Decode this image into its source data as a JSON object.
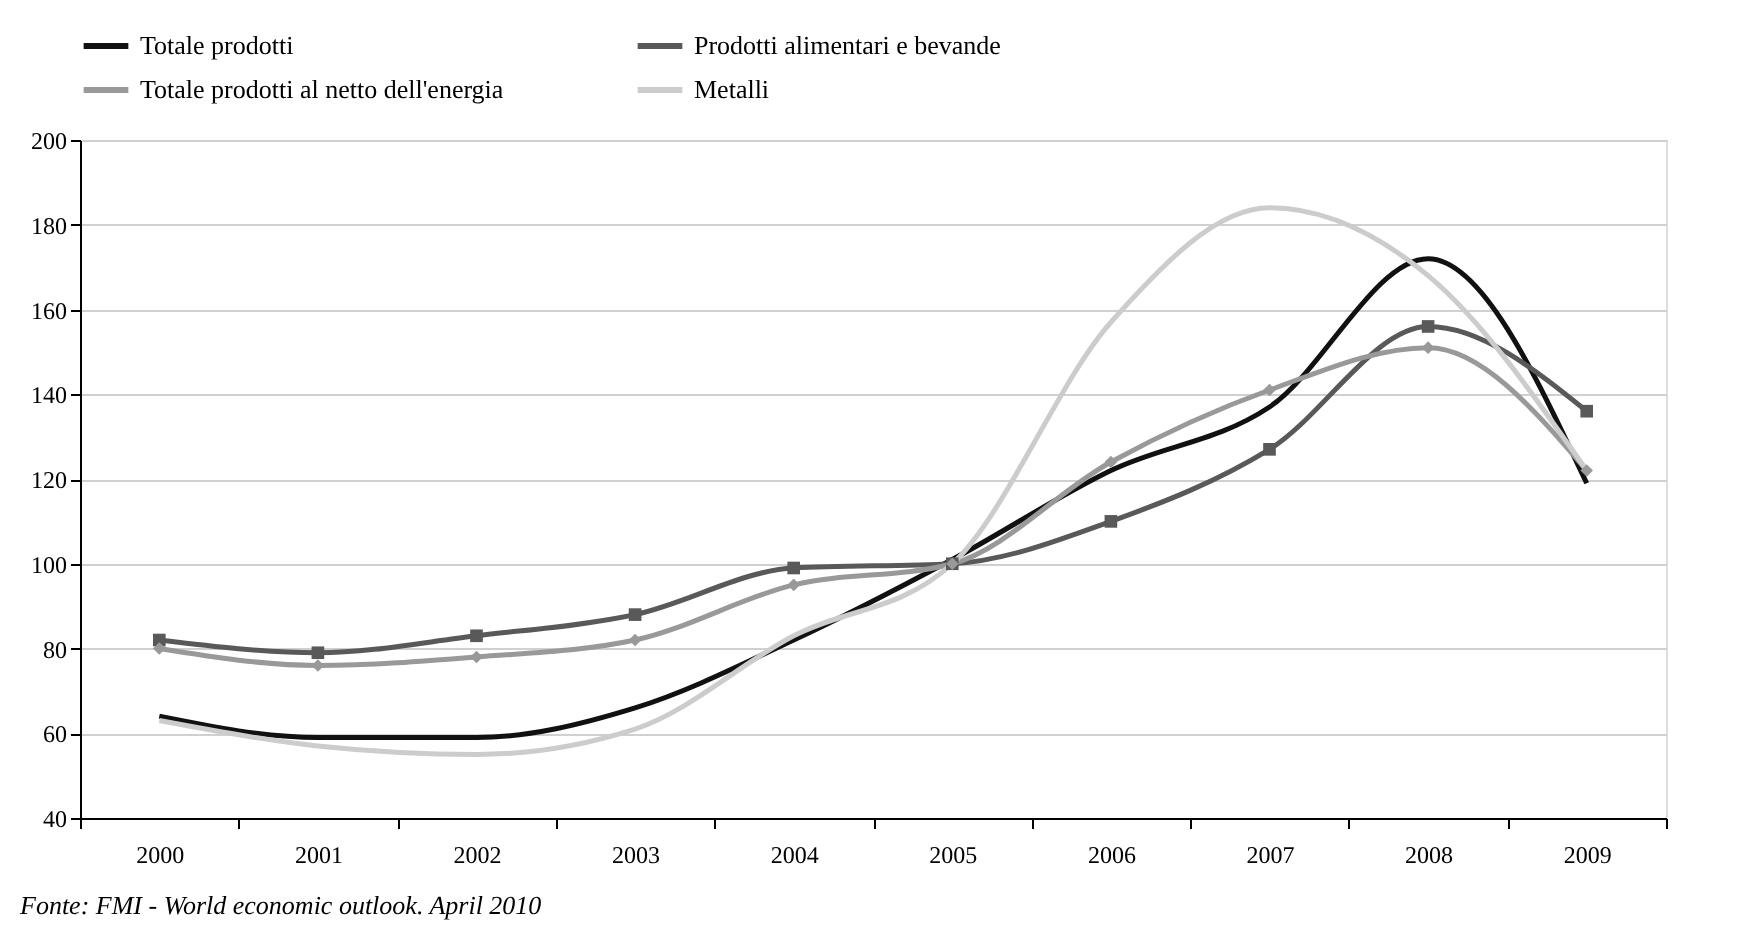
{
  "chart_data": {
    "type": "line",
    "categories": [
      "2000",
      "2001",
      "2002",
      "2003",
      "2004",
      "2005",
      "2006",
      "2007",
      "2008",
      "2009"
    ],
    "series": [
      {
        "name": "Totale prodotti",
        "color": "#111111",
        "marker": "none",
        "values": [
          64,
          59,
          59,
          66,
          82,
          101,
          122,
          137,
          172,
          119
        ]
      },
      {
        "name": "Prodotti alimentari e bevande",
        "color": "#595959",
        "marker": "square",
        "values": [
          82,
          79,
          83,
          88,
          99,
          100,
          110,
          127,
          156,
          136
        ]
      },
      {
        "name": "Totale prodotti al netto dell'energia",
        "color": "#999999",
        "marker": "diamond",
        "values": [
          80,
          76,
          78,
          82,
          95,
          100,
          124,
          141,
          151,
          122
        ]
      },
      {
        "name": "Metalli",
        "color": "#cccccc",
        "marker": "none",
        "values": [
          63,
          57,
          55,
          61,
          83,
          100,
          157,
          184,
          168,
          122
        ]
      }
    ],
    "ylim": [
      40,
      200
    ],
    "yticks": [
      40,
      60,
      80,
      100,
      120,
      140,
      160,
      180,
      200
    ],
    "grid": "y",
    "legend": "top",
    "line_style": "solid",
    "annotations": [
      "Fonte: FMI - World economic outlook. April 2010"
    ]
  }
}
